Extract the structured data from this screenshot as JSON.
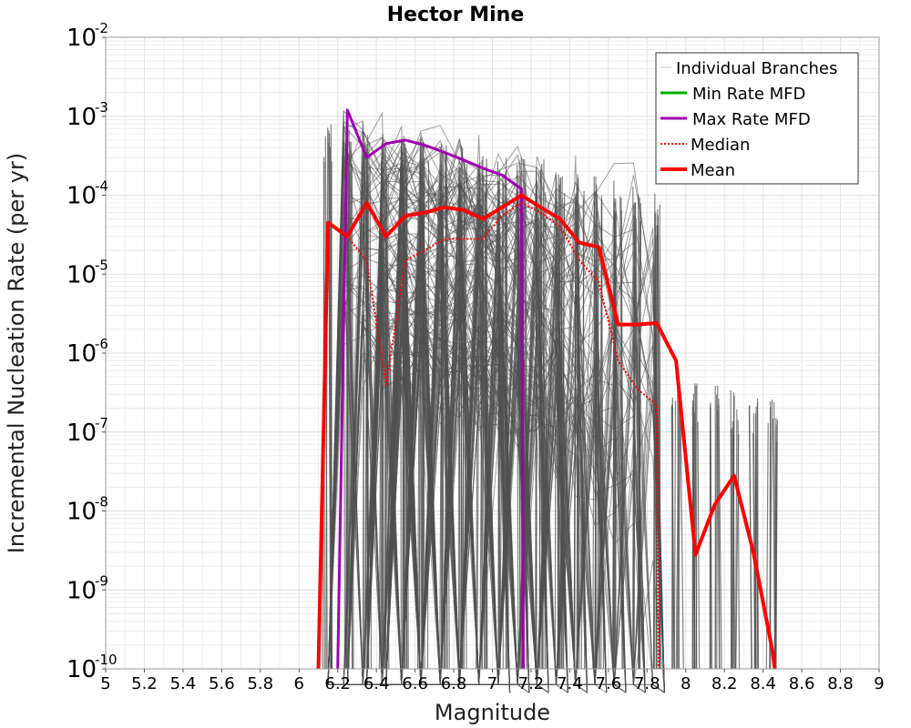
{
  "chart_data": {
    "type": "line",
    "title": "Hector Mine",
    "xlabel": "Magnitude",
    "ylabel": "Incremental Nucleation Rate (per yr)",
    "xlim": [
      5,
      9
    ],
    "ylim": [
      1e-10,
      0.01
    ],
    "yscale": "log",
    "x_ticks": [
      5,
      5.2,
      5.4,
      5.6,
      5.8,
      6,
      6.2,
      6.4,
      6.6,
      6.8,
      7,
      7.2,
      7.4,
      7.6,
      7.8,
      8,
      8.2,
      8.4,
      8.6,
      8.8,
      9
    ],
    "x_tick_labels": [
      "5",
      "5.2",
      "5.4",
      "5.6",
      "5.8",
      "6",
      "6.2",
      "6.4",
      "6.6",
      "6.8",
      "7",
      "7.2",
      "7.4",
      "7.6",
      "7.8",
      "8",
      "8.2",
      "8.4",
      "8.6",
      "8.8",
      "9"
    ],
    "y_ticks": [
      {
        "value": 1e-10,
        "base": "10",
        "exp": "-10"
      },
      {
        "value": 1e-09,
        "base": "10",
        "exp": "-9"
      },
      {
        "value": 1e-08,
        "base": "10",
        "exp": "-8"
      },
      {
        "value": 1e-07,
        "base": "10",
        "exp": "-7"
      },
      {
        "value": 1e-06,
        "base": "10",
        "exp": "-6"
      },
      {
        "value": 1e-05,
        "base": "10",
        "exp": "-5"
      },
      {
        "value": 0.0001,
        "base": "10",
        "exp": "-4"
      },
      {
        "value": 0.001,
        "base": "10",
        "exp": "-3"
      },
      {
        "value": 0.01,
        "base": "10",
        "exp": "-2"
      }
    ],
    "grid": true,
    "legend_position": "top-right",
    "legend": [
      {
        "label": "Individual Branches",
        "color": "#c8c8c8",
        "style": "thin"
      },
      {
        "label": "Min Rate MFD",
        "color": "#00b000",
        "style": "solid"
      },
      {
        "label": "Max Rate MFD",
        "color": "#a000b0",
        "style": "solid"
      },
      {
        "label": "Median",
        "color": "#ff0000",
        "style": "dotted"
      },
      {
        "label": "Mean",
        "color": "#ff0000",
        "style": "thick"
      }
    ],
    "branches_color": "#505050",
    "series": [
      {
        "name": "Max Rate MFD",
        "color": "#a000b0",
        "x": [
          6.2,
          6.25,
          6.35,
          6.45,
          6.55,
          6.65,
          6.75,
          6.85,
          6.95,
          7.05,
          7.15,
          7.16
        ],
        "y": [
          1e-10,
          0.0012,
          0.0003,
          0.00045,
          0.0005,
          0.00043,
          0.00035,
          0.00028,
          0.00022,
          0.00018,
          0.00012,
          1e-10
        ]
      },
      {
        "name": "Median",
        "color": "#ff0000",
        "x": [
          6.1,
          6.15,
          6.25,
          6.35,
          6.45,
          6.55,
          6.65,
          6.75,
          6.85,
          6.95,
          7.05,
          7.15,
          7.25,
          7.35,
          7.45,
          7.55,
          7.65,
          7.75,
          7.85,
          7.86
        ],
        "y": [
          1e-10,
          4.5e-05,
          3e-05,
          1.5e-05,
          4e-07,
          1.5e-05,
          2e-05,
          2.8e-05,
          2.8e-05,
          2.8e-05,
          5.5e-05,
          8e-05,
          6e-05,
          4e-05,
          1.5e-05,
          8e-06,
          8e-07,
          3.5e-07,
          2.2e-07,
          1e-10
        ]
      },
      {
        "name": "Mean",
        "color": "#ff0000",
        "x": [
          6.1,
          6.15,
          6.25,
          6.35,
          6.45,
          6.55,
          6.65,
          6.75,
          6.85,
          6.95,
          7.05,
          7.15,
          7.25,
          7.35,
          7.45,
          7.55,
          7.65,
          7.75,
          7.85,
          7.95,
          8.05,
          8.15,
          8.25,
          8.35,
          8.45,
          8.46
        ],
        "y": [
          1e-10,
          4.5e-05,
          3e-05,
          8e-05,
          3e-05,
          5.5e-05,
          6e-05,
          7e-05,
          6.5e-05,
          5e-05,
          7e-05,
          0.0001,
          7e-05,
          5e-05,
          2.5e-05,
          2.2e-05,
          2.3e-06,
          2.3e-06,
          2.4e-06,
          8e-07,
          2.8e-09,
          1.2e-08,
          2.8e-08,
          3e-09,
          1.6e-10,
          1e-10
        ]
      }
    ]
  }
}
